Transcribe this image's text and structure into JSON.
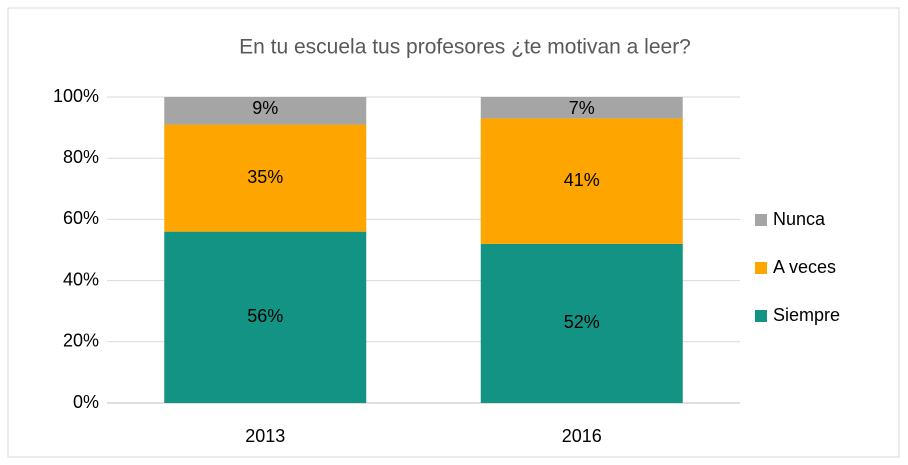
{
  "chart_data": {
    "type": "stacked_bar",
    "title": "En tu escuela tus profesores ¿te motivan a leer?",
    "categories": [
      "2013",
      "2016"
    ],
    "series": [
      {
        "name": "Siempre",
        "color": "#139384",
        "values": [
          56,
          52
        ],
        "value_labels": [
          "56%",
          "52%"
        ]
      },
      {
        "name": "A veces",
        "color": "#ffa500",
        "values": [
          35,
          41
        ],
        "value_labels": [
          "35%",
          "41%"
        ]
      },
      {
        "name": "Nunca",
        "color": "#a5a5a5",
        "values": [
          9,
          7
        ],
        "value_labels": [
          "9%",
          "7%"
        ]
      }
    ],
    "ylim": [
      0,
      100
    ],
    "yticks": [
      {
        "value": 0,
        "label": "0%"
      },
      {
        "value": 20,
        "label": "20%"
      },
      {
        "value": 40,
        "label": "40%"
      },
      {
        "value": 60,
        "label": "60%"
      },
      {
        "value": 80,
        "label": "80%"
      },
      {
        "value": 100,
        "label": "100%"
      }
    ],
    "grid": true,
    "legend": "right"
  }
}
